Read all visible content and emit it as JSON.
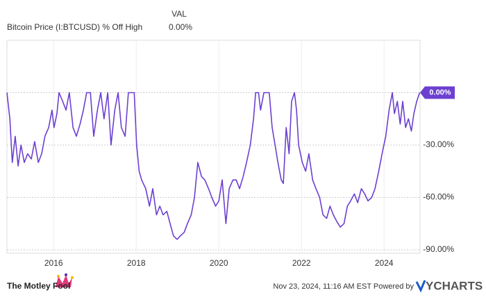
{
  "chart_data": {
    "type": "line",
    "legend_header": "VAL",
    "series": [
      {
        "name": "Bitcoin Price (I:BTCUSD) % Off High",
        "color": "#6c3fd1",
        "legend_value": "0.00%",
        "end_label": "0.00%",
        "x": [
          2014.87,
          2014.94,
          2015.0,
          2015.07,
          2015.14,
          2015.21,
          2015.29,
          2015.37,
          2015.46,
          2015.54,
          2015.63,
          2015.71,
          2015.79,
          2015.88,
          2015.96,
          2016.01,
          2016.08,
          2016.13,
          2016.22,
          2016.3,
          2016.38,
          2016.47,
          2016.55,
          2016.64,
          2016.72,
          2016.8,
          2016.89,
          2016.97,
          2017.06,
          2017.14,
          2017.22,
          2017.31,
          2017.39,
          2017.48,
          2017.56,
          2017.64,
          2017.73,
          2017.81,
          2017.9,
          2017.95,
          2018.01,
          2018.07,
          2018.13,
          2018.23,
          2018.32,
          2018.4,
          2018.49,
          2018.57,
          2018.65,
          2018.74,
          2018.82,
          2018.9,
          2018.99,
          2019.07,
          2019.16,
          2019.24,
          2019.33,
          2019.41,
          2019.49,
          2019.58,
          2019.66,
          2019.75,
          2019.83,
          2019.92,
          2020.0,
          2020.08,
          2020.17,
          2020.25,
          2020.34,
          2020.42,
          2020.5,
          2020.59,
          2020.67,
          2020.76,
          2020.84,
          2020.89,
          2020.96,
          2021.01,
          2021.09,
          2021.17,
          2021.22,
          2021.29,
          2021.36,
          2021.43,
          2021.51,
          2021.56,
          2021.63,
          2021.7,
          2021.76,
          2021.83,
          2021.88,
          2021.93,
          2022.02,
          2022.1,
          2022.18,
          2022.27,
          2022.35,
          2022.44,
          2022.52,
          2022.61,
          2022.69,
          2022.77,
          2022.86,
          2022.94,
          2023.03,
          2023.11,
          2023.19,
          2023.28,
          2023.36,
          2023.45,
          2023.53,
          2023.61,
          2023.7,
          2023.78,
          2023.87,
          2023.95,
          2024.04,
          2024.12,
          2024.2,
          2024.25,
          2024.32,
          2024.39,
          2024.45,
          2024.52,
          2024.59,
          2024.66,
          2024.72,
          2024.79,
          2024.86
        ],
        "values": [
          0,
          -15,
          -40,
          -25,
          -42,
          -30,
          -40,
          -35,
          -38,
          -28,
          -40,
          -35,
          -25,
          -20,
          -10,
          -20,
          -12,
          0,
          -5,
          -10,
          0,
          -20,
          -25,
          -18,
          -10,
          0,
          0,
          -25,
          -10,
          0,
          -15,
          0,
          -30,
          -10,
          0,
          -20,
          -25,
          0,
          0,
          0,
          -30,
          -45,
          -50,
          -55,
          -65,
          -55,
          -70,
          -65,
          -70,
          -68,
          -75,
          -82,
          -84,
          -82,
          -80,
          -75,
          -70,
          -60,
          -40,
          -48,
          -50,
          -55,
          -60,
          -65,
          -62,
          -50,
          -75,
          -55,
          -50,
          -50,
          -55,
          -48,
          -40,
          -30,
          -15,
          0,
          0,
          -10,
          0,
          0,
          0,
          -20,
          -30,
          -40,
          -50,
          -52,
          -20,
          -35,
          -5,
          0,
          -10,
          -30,
          -40,
          -45,
          -35,
          -50,
          -55,
          -60,
          -70,
          -72,
          -65,
          -70,
          -74,
          -77,
          -75,
          -65,
          -62,
          -58,
          -63,
          -55,
          -58,
          -62,
          -60,
          -55,
          -45,
          -35,
          -25,
          -10,
          0,
          -12,
          -5,
          -18,
          -5,
          -20,
          -15,
          -22,
          -12,
          -5,
          0
        ]
      }
    ],
    "xlim": [
      2014.87,
      2024.87
    ],
    "xticks": [
      2016,
      2018,
      2020,
      2022,
      2024
    ],
    "ylim": [
      -92,
      30
    ],
    "yticks": [
      {
        "value": 0,
        "label": "0.00%"
      },
      {
        "value": -30,
        "label": "-30.00%"
      },
      {
        "value": -60,
        "label": "-60.00%"
      },
      {
        "value": -90,
        "label": "-90.00%"
      }
    ],
    "grid": true
  },
  "footer": {
    "brand": "The Motley Fool",
    "timestamp": "Nov 23, 2024, 11:16 AM EST Powered by",
    "provider": "YCHARTS"
  }
}
